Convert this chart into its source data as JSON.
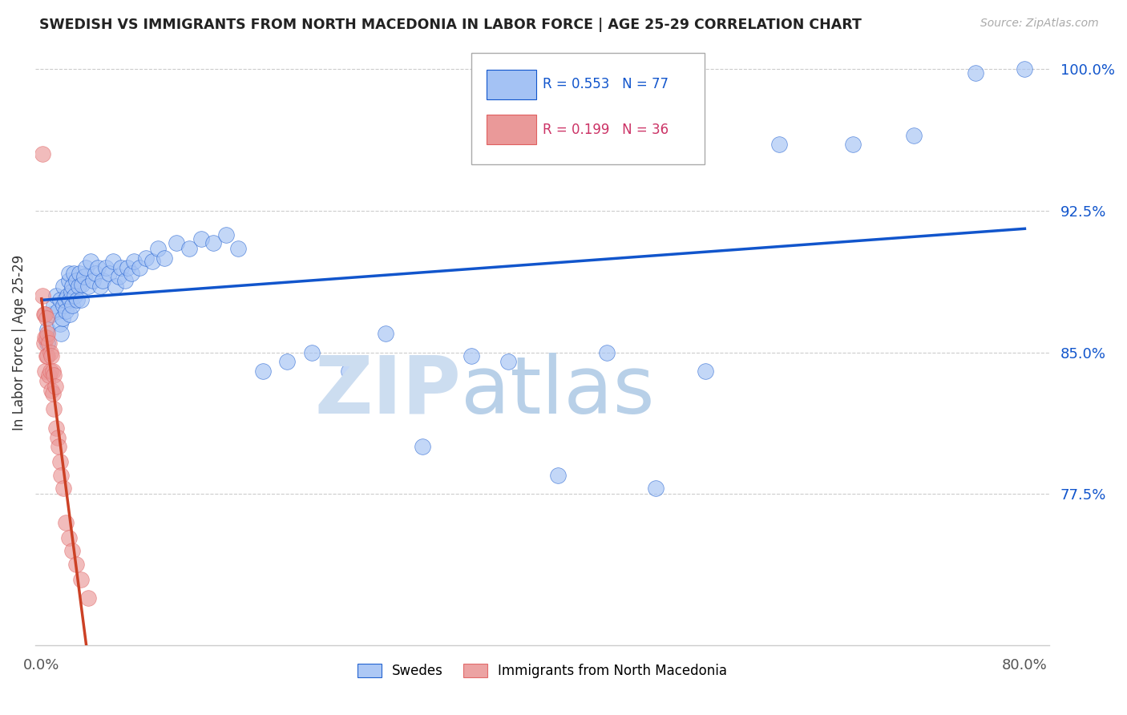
{
  "title": "SWEDISH VS IMMIGRANTS FROM NORTH MACEDONIA IN LABOR FORCE | AGE 25-29 CORRELATION CHART",
  "source": "Source: ZipAtlas.com",
  "ylabel": "In Labor Force | Age 25-29",
  "x_tick_labels": [
    "0.0%",
    "",
    "",
    "",
    "",
    "",
    "",
    "",
    "80.0%"
  ],
  "y_tick_labels": [
    "77.5%",
    "85.0%",
    "92.5%",
    "100.0%"
  ],
  "y_tick_values": [
    0.775,
    0.85,
    0.925,
    1.0
  ],
  "x_tick_values": [
    0.0,
    0.1,
    0.2,
    0.3,
    0.4,
    0.5,
    0.6,
    0.7,
    0.8
  ],
  "xlim": [
    -0.005,
    0.82
  ],
  "ylim": [
    0.695,
    1.015
  ],
  "r_swedish": 0.553,
  "n_swedish": 77,
  "r_macedonian": 0.199,
  "n_macedonian": 36,
  "blue_color": "#a4c2f4",
  "pink_color": "#ea9999",
  "blue_line_color": "#1155cc",
  "pink_line_color": "#cc4125",
  "legend_labels": [
    "Swedes",
    "Immigrants from North Macedonia"
  ],
  "swedes_x": [
    0.005,
    0.005,
    0.008,
    0.01,
    0.012,
    0.013,
    0.015,
    0.015,
    0.016,
    0.017,
    0.018,
    0.018,
    0.019,
    0.02,
    0.021,
    0.022,
    0.022,
    0.023,
    0.023,
    0.024,
    0.025,
    0.025,
    0.026,
    0.027,
    0.028,
    0.029,
    0.03,
    0.031,
    0.032,
    0.033,
    0.035,
    0.036,
    0.038,
    0.04,
    0.042,
    0.044,
    0.046,
    0.048,
    0.05,
    0.052,
    0.055,
    0.058,
    0.06,
    0.063,
    0.065,
    0.068,
    0.07,
    0.073,
    0.075,
    0.08,
    0.085,
    0.09,
    0.095,
    0.1,
    0.11,
    0.12,
    0.13,
    0.14,
    0.15,
    0.16,
    0.18,
    0.2,
    0.22,
    0.25,
    0.28,
    0.31,
    0.35,
    0.38,
    0.42,
    0.46,
    0.5,
    0.54,
    0.6,
    0.66,
    0.71,
    0.76,
    0.8
  ],
  "swedes_y": [
    0.862,
    0.855,
    0.87,
    0.875,
    0.88,
    0.872,
    0.865,
    0.878,
    0.86,
    0.868,
    0.885,
    0.875,
    0.878,
    0.872,
    0.88,
    0.888,
    0.892,
    0.878,
    0.87,
    0.882,
    0.875,
    0.885,
    0.892,
    0.88,
    0.888,
    0.878,
    0.885,
    0.892,
    0.878,
    0.886,
    0.89,
    0.895,
    0.885,
    0.898,
    0.888,
    0.892,
    0.895,
    0.885,
    0.888,
    0.895,
    0.892,
    0.898,
    0.885,
    0.89,
    0.895,
    0.888,
    0.895,
    0.892,
    0.898,
    0.895,
    0.9,
    0.898,
    0.905,
    0.9,
    0.908,
    0.905,
    0.91,
    0.908,
    0.912,
    0.905,
    0.84,
    0.845,
    0.85,
    0.84,
    0.86,
    0.8,
    0.848,
    0.845,
    0.785,
    0.85,
    0.778,
    0.84,
    0.96,
    0.96,
    0.965,
    0.998,
    1.0
  ],
  "macedonian_x": [
    0.001,
    0.001,
    0.002,
    0.002,
    0.003,
    0.003,
    0.003,
    0.004,
    0.004,
    0.004,
    0.005,
    0.005,
    0.005,
    0.006,
    0.006,
    0.007,
    0.007,
    0.008,
    0.008,
    0.009,
    0.009,
    0.01,
    0.01,
    0.011,
    0.012,
    0.013,
    0.014,
    0.015,
    0.016,
    0.018,
    0.02,
    0.022,
    0.025,
    0.028,
    0.032,
    0.038
  ],
  "macedonian_y": [
    0.955,
    0.88,
    0.87,
    0.855,
    0.87,
    0.858,
    0.84,
    0.868,
    0.858,
    0.848,
    0.86,
    0.848,
    0.835,
    0.855,
    0.838,
    0.85,
    0.84,
    0.848,
    0.83,
    0.84,
    0.828,
    0.838,
    0.82,
    0.832,
    0.81,
    0.805,
    0.8,
    0.792,
    0.785,
    0.778,
    0.76,
    0.752,
    0.745,
    0.738,
    0.73,
    0.72
  ]
}
